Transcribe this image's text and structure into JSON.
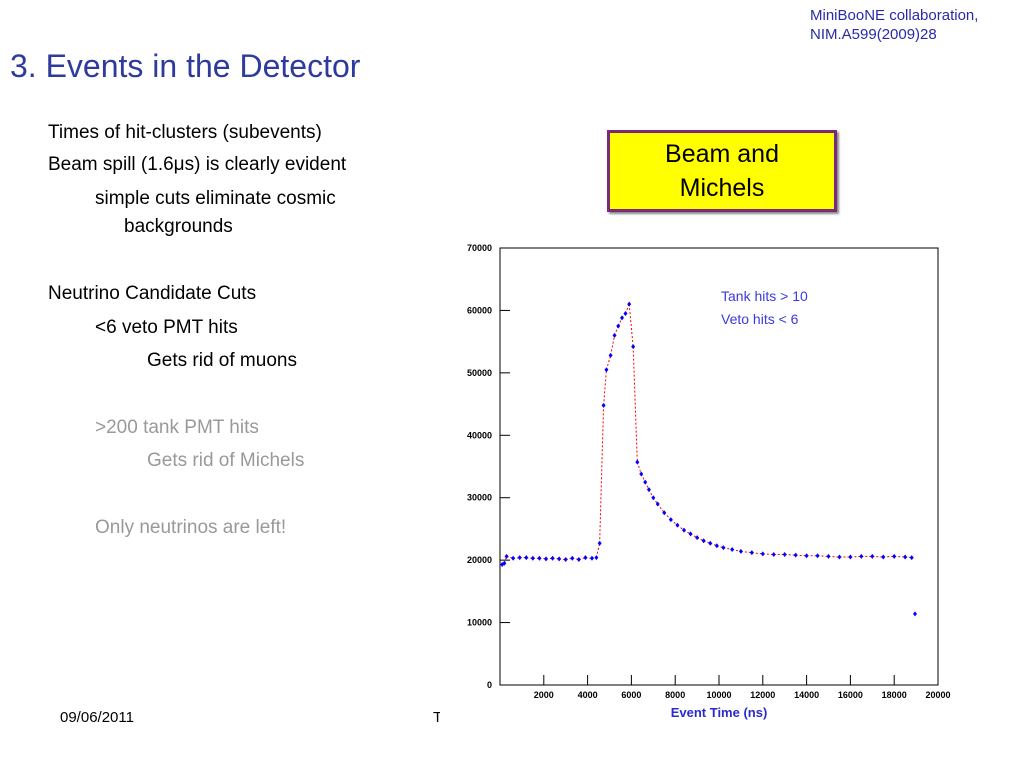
{
  "title": "3. Events in the Detector",
  "citation": [
    "MiniBooNE collaboration,",
    "NIM.A599(2009)28"
  ],
  "bullets": [
    {
      "text": "Times of hit-clusters (subevents)",
      "level": 0,
      "muted": false
    },
    {
      "text": "Beam spill (1.6μs) is clearly evident",
      "level": 0,
      "muted": false
    },
    {
      "text": "simple cuts eliminate cosmic backgrounds",
      "level": 1,
      "muted": false
    },
    {
      "text": "Neutrino Candidate Cuts",
      "level": 0,
      "muted": false
    },
    {
      "text": "<6 veto PMT hits",
      "level": 1,
      "muted": false
    },
    {
      "text": "Gets rid of muons",
      "level": 2,
      "muted": false
    },
    {
      "text": ">200 tank PMT hits",
      "level": 1,
      "muted": true
    },
    {
      "text": "Gets rid of Michels",
      "level": 2,
      "muted": true
    },
    {
      "text": "Only neutrinos are left!",
      "level": 1,
      "muted": true
    }
  ],
  "callout": "Beam and Michels",
  "footer": {
    "date": "09/06/2011",
    "center": "Te"
  },
  "chart_data": {
    "type": "scatter",
    "xlabel": "Event Time (ns)",
    "annotations": [
      "Tank hits > 10",
      "Veto hits < 6"
    ],
    "x": [
      100,
      200,
      300,
      600,
      900,
      1200,
      1500,
      1800,
      2100,
      2400,
      2700,
      3000,
      3300,
      3600,
      3900,
      4200,
      4400,
      4550,
      4730,
      4860,
      5050,
      5230,
      5400,
      5570,
      5730,
      5900,
      6080,
      6270,
      6450,
      6630,
      6800,
      7000,
      7200,
      7500,
      7800,
      8100,
      8400,
      8700,
      9000,
      9300,
      9600,
      9900,
      10200,
      10600,
      11000,
      11500,
      12000,
      12500,
      13000,
      13500,
      14000,
      14500,
      15000,
      15500,
      16000,
      16500,
      17000,
      17500,
      18000,
      18500,
      18800,
      18950
    ],
    "values": [
      19300,
      19500,
      20600,
      20300,
      20400,
      20400,
      20300,
      20300,
      20200,
      20300,
      20200,
      20100,
      20300,
      20100,
      20400,
      20300,
      20400,
      22700,
      44800,
      50500,
      52800,
      56000,
      57500,
      58800,
      59500,
      61000,
      54200,
      35700,
      33800,
      32500,
      31300,
      30000,
      29000,
      27600,
      26500,
      25600,
      24800,
      24200,
      23600,
      23100,
      22700,
      22300,
      22000,
      21700,
      21400,
      21200,
      21000,
      20900,
      20900,
      20800,
      20700,
      20700,
      20600,
      20500,
      20500,
      20600,
      20600,
      20500,
      20600,
      20500,
      20400,
      11400
    ],
    "color": "#0000ff",
    "fit_color": "#ff0000",
    "xlim": [
      0,
      20000
    ],
    "ylim": [
      0,
      70000
    ],
    "xticks": [
      2000,
      4000,
      6000,
      8000,
      10000,
      12000,
      14000,
      16000,
      18000,
      20000
    ],
    "yticks": [
      0,
      10000,
      20000,
      30000,
      40000,
      50000,
      60000,
      70000
    ]
  }
}
